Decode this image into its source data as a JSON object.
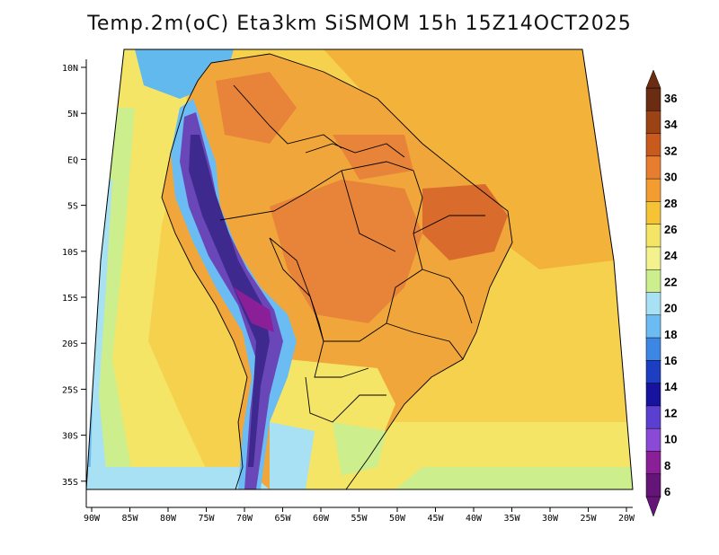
{
  "title": "Temp.2m(oC) Eta3km SiSMOM 15h 15Z14OCT2025",
  "colors": {
    "ocean": "#f6d14e",
    "land": "#f0a63a",
    "land_hot": "#e8833a",
    "andes": "#6a47b8",
    "andes_cold": "#3e2a8f",
    "coast_cool": "#a8dd7a",
    "ocean_pacific_cool": "#62b9ee",
    "border": "#000000"
  },
  "lat_labels": [
    "10N",
    "5N",
    "EQ",
    "5S",
    "10S",
    "15S",
    "20S",
    "25S",
    "30S",
    "35S"
  ],
  "lon_labels": [
    "90W",
    "85W",
    "80W",
    "75W",
    "70W",
    "65W",
    "60W",
    "55W",
    "50W",
    "45W",
    "40W",
    "35W",
    "30W",
    "25W",
    "20W"
  ],
  "colorbar": {
    "labels": [
      "36",
      "34",
      "32",
      "30",
      "28",
      "26",
      "24",
      "22",
      "20",
      "18",
      "16",
      "14",
      "12",
      "10",
      "8",
      "6"
    ],
    "colors_top_to_bottom": [
      "#6b2d12",
      "#9c4315",
      "#c95a1e",
      "#e77e2f",
      "#f39c32",
      "#f6c335",
      "#f4e567",
      "#f3f28f",
      "#cdee8d",
      "#a8e1f4",
      "#6bbcf2",
      "#3c86e4",
      "#1d3ec0",
      "#16139e",
      "#5b3fd0",
      "#8b4ad5",
      "#8a1f98",
      "#641577"
    ]
  }
}
